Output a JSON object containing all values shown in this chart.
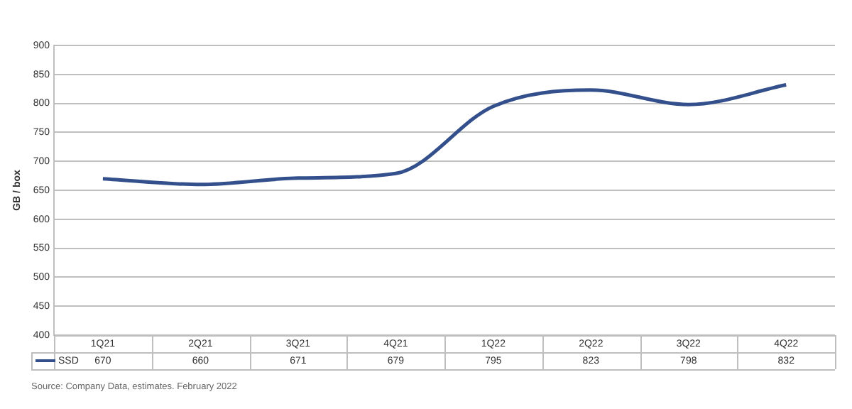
{
  "chart_data": {
    "type": "line",
    "ylabel": "GB / box",
    "categories": [
      "1Q21",
      "2Q21",
      "3Q21",
      "4Q21",
      "1Q22",
      "2Q22",
      "3Q22",
      "4Q22"
    ],
    "series": [
      {
        "name": "SSD",
        "color": "#34508c",
        "values": [
          670,
          660,
          671,
          679,
          795,
          823,
          798,
          832
        ]
      }
    ],
    "ylim": [
      400,
      900
    ],
    "yticks": [
      400,
      450,
      500,
      550,
      600,
      650,
      700,
      750,
      800,
      850,
      900
    ],
    "grid": "y",
    "legend": "bottom",
    "marker": "none",
    "data_labels": true,
    "annotations": [
      "Source: Company Data, estimates. February 2022"
    ]
  }
}
